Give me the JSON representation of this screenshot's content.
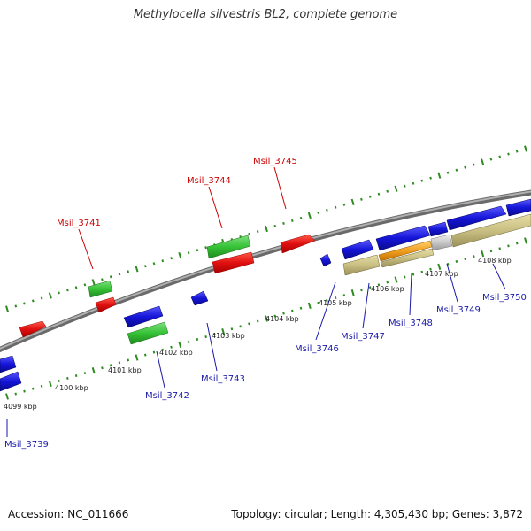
{
  "title": "Methylocella silvestris BL2, complete genome",
  "footer": {
    "accession": "Accession: NC_011666",
    "summary": "Topology: circular; Length: 4,305,430 bp; Genes: 3,872"
  },
  "colors": {
    "backbone": "#8c8c8c",
    "tick": "#2e8b20",
    "gene_label_red": "#cc0000",
    "gene_label_blue": "#1a1aa8",
    "red": "#e01010",
    "green": "#36c236",
    "blue": "#1515d8",
    "khaki": "#c9bf82",
    "orange": "#f0a020",
    "grey": "#c8c8c8"
  },
  "kbp_labels": [
    "4099 kbp",
    "4100 kbp",
    "4101 kbp",
    "4102 kbp",
    "4103 kbp",
    "4104 kbp",
    "4105 kbp",
    "4106 kbp",
    "4107 kbp",
    "4108 kbp"
  ],
  "gene_labels": {
    "top": [
      "Msil_3741",
      "Msil_3744",
      "Msil_3745"
    ],
    "bottom": [
      "Msil_3739",
      "Msil_3742",
      "Msil_3743",
      "Msil_3746",
      "Msil_3747",
      "Msil_3748",
      "Msil_3749",
      "Msil_3750"
    ]
  }
}
